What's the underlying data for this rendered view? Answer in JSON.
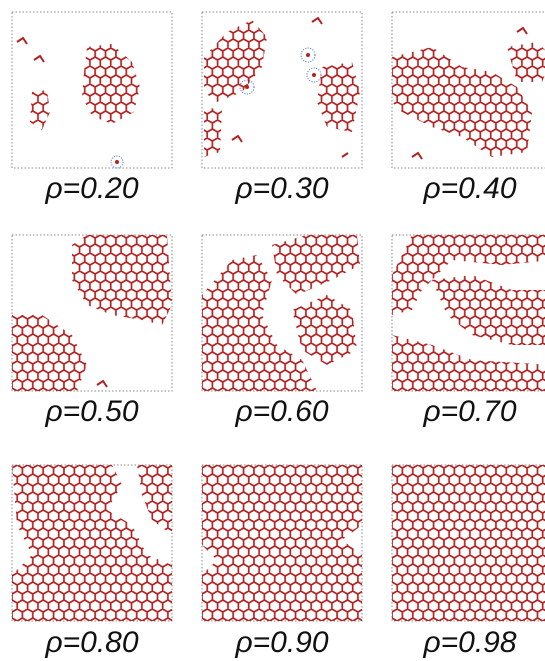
{
  "panels": [
    {
      "label": "ρ=0.20"
    },
    {
      "label": "ρ=0.30"
    },
    {
      "label": "ρ=0.40"
    },
    {
      "label": "ρ=0.50"
    },
    {
      "label": "ρ=0.60"
    },
    {
      "label": "ρ=0.70"
    },
    {
      "label": "ρ=0.80"
    },
    {
      "label": "ρ=0.90"
    },
    {
      "label": "ρ=0.98"
    }
  ]
}
